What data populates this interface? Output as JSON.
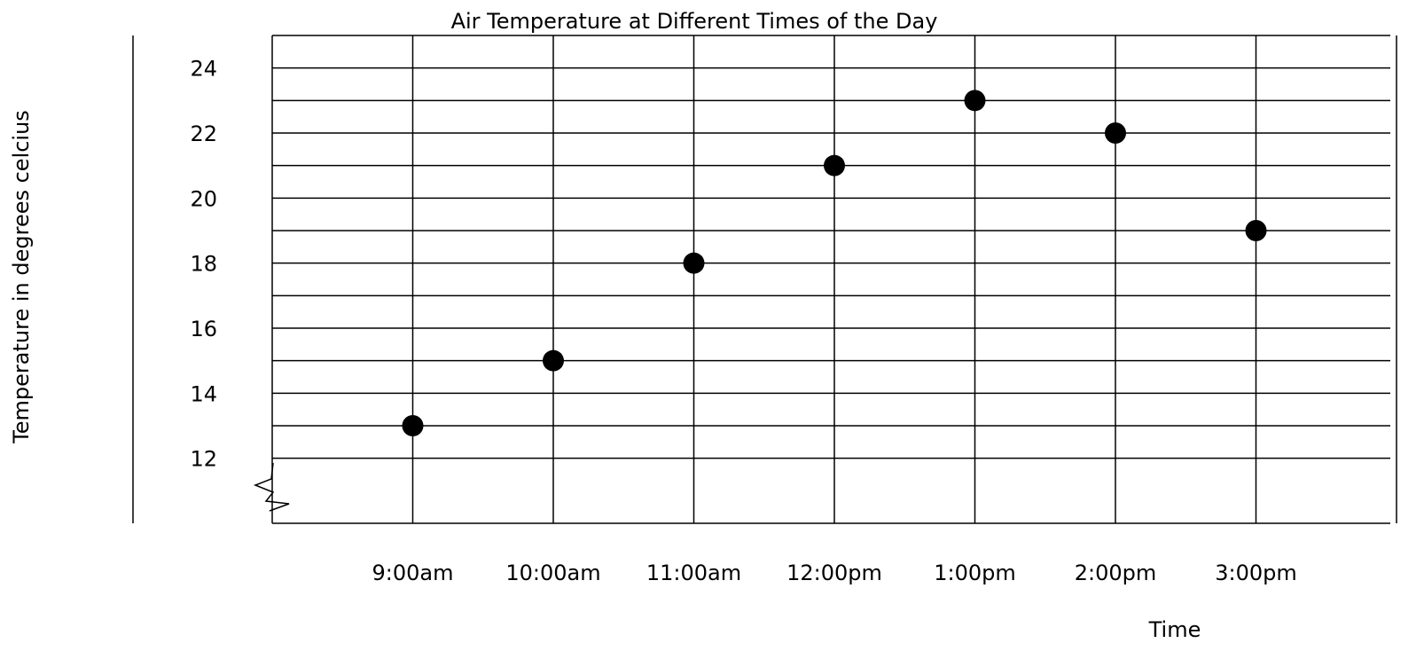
{
  "chart_data": {
    "type": "scatter",
    "title": "Air Temperature at Different Times of the Day",
    "x_label": "Time",
    "y_label": "Temperature in degrees celcius",
    "categories": [
      "9:00am",
      "10:00am",
      "11:00am",
      "12:00pm",
      "1:00pm",
      "2:00pm",
      "3:00pm"
    ],
    "values": [
      13,
      15,
      18,
      21,
      23,
      22,
      19
    ],
    "color": "#000000",
    "ylim": [
      10,
      25
    ],
    "yticks": [
      12,
      14,
      16,
      18,
      20,
      22,
      24
    ],
    "minor_yticks": [
      13,
      15,
      17,
      19,
      21,
      23,
      25
    ],
    "grid": true
  }
}
